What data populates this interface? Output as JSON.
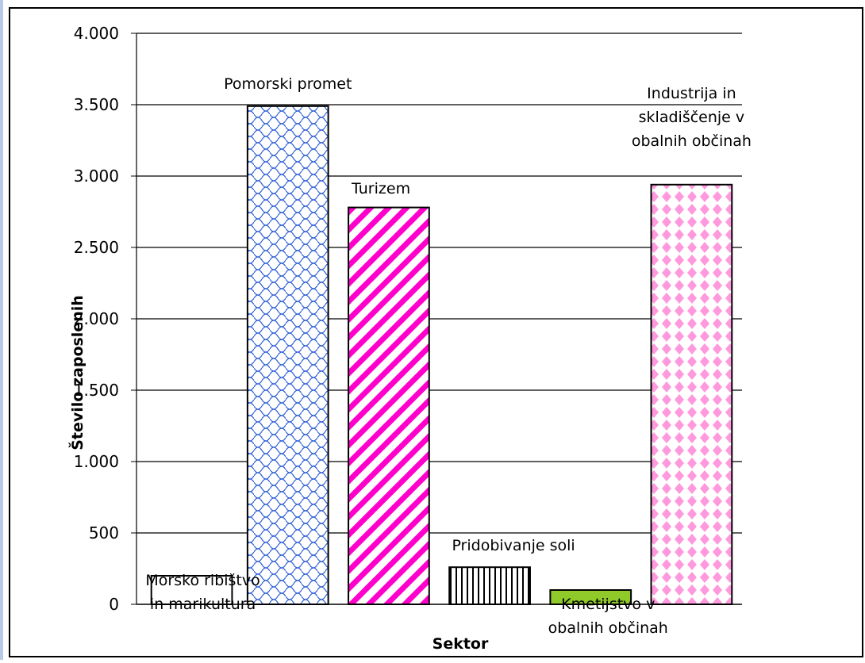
{
  "chart_data": {
    "type": "bar",
    "title": "",
    "xlabel": "Sektor",
    "ylabel": "Število zaposlenih",
    "ylim": [
      0,
      4000
    ],
    "yticks": [
      0,
      500,
      1000,
      1500,
      2000,
      2500,
      3000,
      3500,
      4000
    ],
    "ytick_labels": [
      "0",
      "500",
      "1.000",
      "1.500",
      "2.000",
      "2.500",
      "3.000",
      "3.500",
      "4.000"
    ],
    "grid": true,
    "legend": "none",
    "categories": [
      "Morsko ribištvo in marikultura",
      "Pomorski promet",
      "Turizem",
      "Pridobivanje soli",
      "Kmetijstvo v obalnih občinah",
      "Industrija in skladiščenje v obalnih občinah"
    ],
    "category_label_lines": [
      [
        "Morsko ribištvo",
        "in marikultura"
      ],
      [
        "Pomorski promet"
      ],
      [
        "Turizem"
      ],
      [
        "Pridobivanje soli"
      ],
      [
        "Kmetijstvo v",
        "obalnih občinah"
      ],
      [
        "Industrija in",
        "skladiščenje v",
        "obalnih občinah"
      ]
    ],
    "values": [
      200,
      3490,
      2780,
      260,
      100,
      2940
    ],
    "bar_styles": [
      {
        "pattern": "none",
        "fill": "#ffffff",
        "color": "#000000"
      },
      {
        "pattern": "scales",
        "fill": "#ffffff",
        "color": "#2f5fd6"
      },
      {
        "pattern": "diagonal",
        "fill": "#ffffff",
        "color": "#ff00cc"
      },
      {
        "pattern": "vertical",
        "fill": "#ffffff",
        "color": "#000000"
      },
      {
        "pattern": "solid",
        "fill": "#8fc92a",
        "color": "#8fc92a"
      },
      {
        "pattern": "diamonds",
        "fill": "#ffffff",
        "color": "#ff99dd"
      }
    ]
  }
}
